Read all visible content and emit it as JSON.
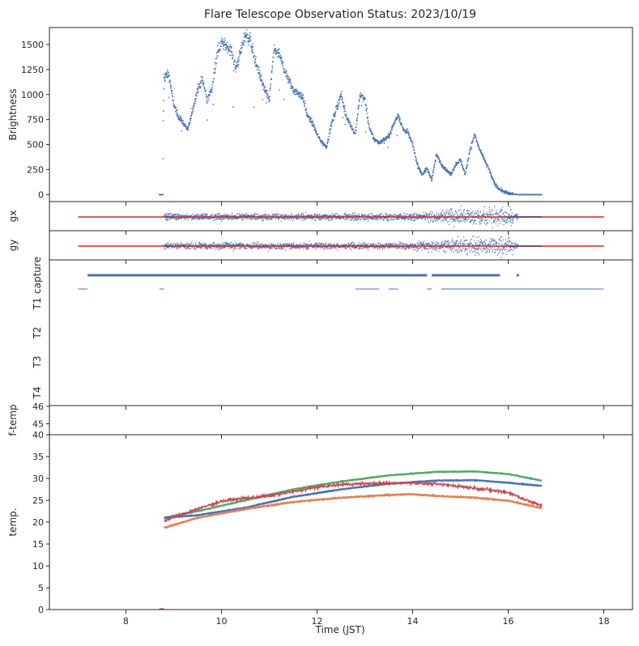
{
  "chart_data": {
    "type": "scatter",
    "title": "Flare Telescope Observation Status: 2023/10/19",
    "xlabel": "Time (JST)",
    "xlim": [
      6.4,
      18.6
    ],
    "xticks": [
      8,
      10,
      12,
      14,
      16,
      18
    ],
    "colors": {
      "brightness": "#4c72b0",
      "guide": "#d62728",
      "capture": "#4c72b0",
      "green": "#55a868",
      "blue": "#4c72b0",
      "orange": "#dd8452",
      "red": "#c44e52"
    },
    "panels": [
      {
        "id": "brightness",
        "ylabel": "Brightness",
        "ylim": [
          -70,
          1670
        ],
        "yticks": [
          0,
          250,
          500,
          750,
          1000,
          1250,
          1500
        ],
        "envelope": [
          [
            8.7,
            0
          ],
          [
            8.75,
            0
          ],
          [
            8.8,
            1180
          ],
          [
            8.9,
            1200
          ],
          [
            9.0,
            900
          ],
          [
            9.1,
            780
          ],
          [
            9.3,
            650
          ],
          [
            9.5,
            1050
          ],
          [
            9.6,
            1150
          ],
          [
            9.7,
            950
          ],
          [
            9.8,
            1050
          ],
          [
            9.9,
            1400
          ],
          [
            10.0,
            1520
          ],
          [
            10.2,
            1450
          ],
          [
            10.3,
            1250
          ],
          [
            10.5,
            1600
          ],
          [
            10.6,
            1550
          ],
          [
            10.7,
            1350
          ],
          [
            10.8,
            1200
          ],
          [
            10.9,
            1050
          ],
          [
            11.0,
            950
          ],
          [
            11.1,
            1450
          ],
          [
            11.2,
            1400
          ],
          [
            11.4,
            1150
          ],
          [
            11.5,
            1050
          ],
          [
            11.7,
            980
          ],
          [
            11.8,
            780
          ],
          [
            11.9,
            720
          ],
          [
            12.0,
            600
          ],
          [
            12.1,
            520
          ],
          [
            12.2,
            480
          ],
          [
            12.3,
            700
          ],
          [
            12.4,
            850
          ],
          [
            12.5,
            1000
          ],
          [
            12.6,
            800
          ],
          [
            12.7,
            700
          ],
          [
            12.8,
            600
          ],
          [
            12.9,
            1000
          ],
          [
            13.0,
            950
          ],
          [
            13.1,
            650
          ],
          [
            13.2,
            550
          ],
          [
            13.3,
            520
          ],
          [
            13.5,
            580
          ],
          [
            13.6,
            700
          ],
          [
            13.7,
            800
          ],
          [
            13.8,
            650
          ],
          [
            13.9,
            620
          ],
          [
            14.0,
            500
          ],
          [
            14.1,
            300
          ],
          [
            14.2,
            200
          ],
          [
            14.3,
            260
          ],
          [
            14.4,
            150
          ],
          [
            14.5,
            400
          ],
          [
            14.6,
            300
          ],
          [
            14.7,
            250
          ],
          [
            14.8,
            200
          ],
          [
            14.9,
            300
          ],
          [
            15.0,
            350
          ],
          [
            15.1,
            200
          ],
          [
            15.2,
            450
          ],
          [
            15.3,
            600
          ],
          [
            15.4,
            450
          ],
          [
            15.5,
            350
          ],
          [
            15.6,
            250
          ],
          [
            15.7,
            120
          ],
          [
            15.8,
            60
          ],
          [
            15.9,
            30
          ],
          [
            16.0,
            10
          ],
          [
            16.2,
            0
          ],
          [
            16.7,
            0
          ]
        ]
      },
      {
        "id": "gx",
        "ylabel": "gx",
        "line_x": [
          7.0,
          18.0
        ]
      },
      {
        "id": "gy",
        "ylabel": "gy",
        "line_x": [
          7.0,
          18.0
        ]
      },
      {
        "id": "status",
        "ylabels": [
          "capture",
          "T1",
          "T2",
          "T3",
          "T4"
        ],
        "capture_segments": [
          [
            7.2,
            13.6
          ],
          [
            13.6,
            14.3
          ],
          [
            14.4,
            15.8
          ]
        ],
        "t1_segments": [
          [
            7.0,
            7.2
          ],
          [
            8.7,
            8.8
          ],
          [
            12.8,
            13.3
          ],
          [
            13.5,
            13.7
          ],
          [
            14.3,
            14.4
          ],
          [
            14.6,
            18.0
          ]
        ]
      },
      {
        "id": "ftemp",
        "ylabel": "f-temp",
        "ylim": [
          44.4,
          46
        ],
        "yticks": [
          45,
          46
        ]
      },
      {
        "id": "temp",
        "ylabel": "temp.",
        "ylim": [
          0,
          40
        ],
        "yticks": [
          0,
          5,
          10,
          15,
          20,
          25,
          30,
          35,
          40
        ],
        "series": [
          {
            "color": "#55a868",
            "x": [
              8.8,
              9.5,
              10.5,
              11.5,
              12.5,
              13.5,
              14.5,
              15.3,
              16.0,
              16.7
            ],
            "y": [
              21,
              22.5,
              25,
              27.5,
              29.3,
              30.7,
              31.5,
              31.6,
              31.0,
              29.5
            ]
          },
          {
            "color": "#4c72b0",
            "x": [
              8.8,
              9.5,
              10.5,
              11.5,
              12.5,
              13.5,
              14.5,
              15.3,
              16.0,
              16.7
            ],
            "y": [
              21,
              21.6,
              23.3,
              25.8,
              27.5,
              28.8,
              29.5,
              29.6,
              29.0,
              28.3
            ]
          },
          {
            "color": "#dd8452",
            "x": [
              8.8,
              9.5,
              10.5,
              11.5,
              12.5,
              13.5,
              14.0,
              14.5,
              15.3,
              16.0,
              16.7
            ],
            "y": [
              18.7,
              21.0,
              23.0,
              24.6,
              25.6,
              26.2,
              26.4,
              26.0,
              25.6,
              24.9,
              23.2
            ]
          },
          {
            "color": "#c44e52",
            "x": [
              8.8,
              9.3,
              10.0,
              10.5,
              11.0,
              11.5,
              12.0,
              12.5,
              13.0,
              13.5,
              14.0,
              14.5,
              15.0,
              15.5,
              16.0,
              16.5,
              16.7
            ],
            "y": [
              20.3,
              22.3,
              24.8,
              25.5,
              26.0,
              27.0,
              28.0,
              28.6,
              28.8,
              28.9,
              29.0,
              28.7,
              28.2,
              27.5,
              26.8,
              24.5,
              23.8
            ]
          }
        ]
      }
    ]
  }
}
